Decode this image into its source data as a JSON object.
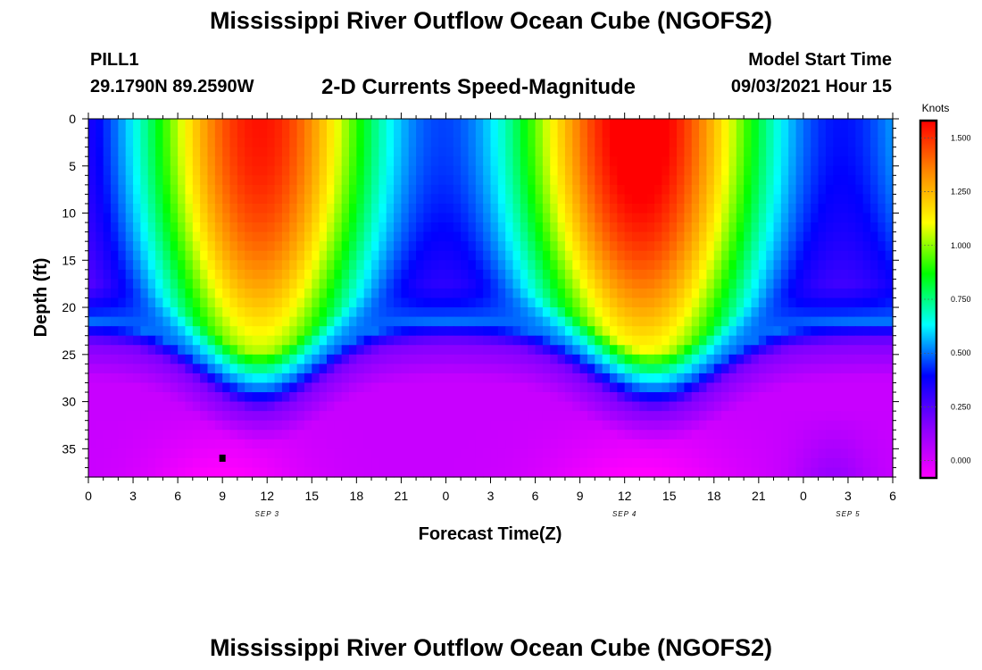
{
  "header": {
    "title": "Mississippi River Outflow Ocean Cube (NGOFS2)",
    "station": "PILL1",
    "latlon": "29.1790N  89.2590W",
    "variable": "2-D Currents Speed-Magnitude",
    "model_start_label": "Model Start Time",
    "model_start_value": "09/03/2021 Hour 15"
  },
  "footer": {
    "title": "Mississippi River Outflow Ocean Cube (NGOFS2)"
  },
  "chart_data": {
    "type": "heatmap",
    "xlabel": "Forecast Time(Z)",
    "ylabel": "Depth (ft)",
    "x_ticks": [
      "0",
      "3",
      "6",
      "9",
      "12",
      "15",
      "18",
      "21",
      "0",
      "3",
      "6",
      "9",
      "12",
      "15",
      "18",
      "21",
      "0",
      "3",
      "6"
    ],
    "x_range_hours": [
      0,
      54
    ],
    "date_labels": [
      {
        "text": "SEP 3",
        "hour": 12
      },
      {
        "text": "SEP 4",
        "hour": 36
      },
      {
        "text": "SEP 5",
        "hour": 51
      }
    ],
    "y_ticks": [
      0,
      5,
      10,
      15,
      20,
      25,
      30,
      35
    ],
    "ylim": [
      0,
      38
    ],
    "y_inverted": true,
    "colorbar": {
      "title": "Knots",
      "ticks": [
        "1.500",
        "1.250",
        "1.000",
        "0.750",
        "0.500",
        "0.250",
        "0.000"
      ],
      "range": [
        -0.08,
        1.58
      ],
      "colors": [
        "#ff00ff",
        "#8800ff",
        "#0000ff",
        "#00ffff",
        "#00ff00",
        "#ffff00",
        "#ff8800",
        "#ff0000"
      ]
    },
    "surface_peaks": [
      {
        "hour": 11.5,
        "speed": 1.4
      },
      {
        "hour": 37,
        "speed": 1.5
      }
    ],
    "marker": {
      "hour": 9,
      "depth": 36
    }
  }
}
